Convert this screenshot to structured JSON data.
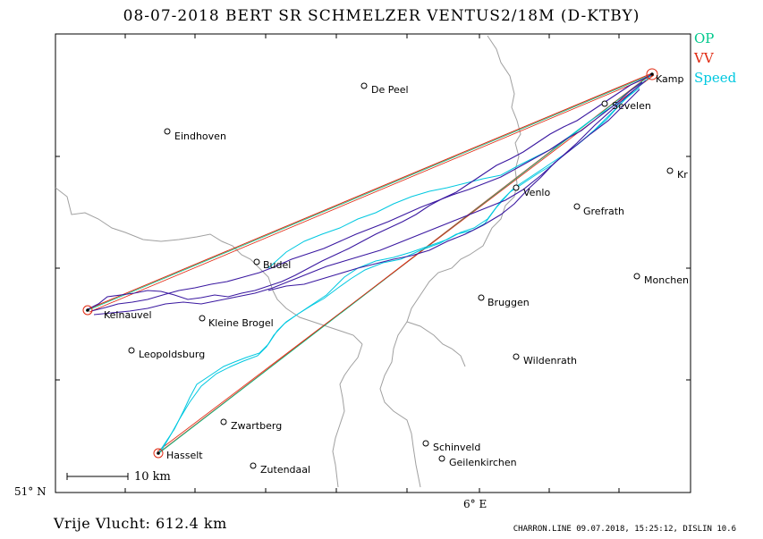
{
  "title": "08-07-2018   BERT SR SCHMELZER   VENTUS2/18M (D-KTBY)",
  "legend": [
    {
      "label": "OP",
      "color": "#00c88c"
    },
    {
      "label": "VV",
      "color": "#e02810"
    },
    {
      "label": "Speed",
      "color": "#00c8e0"
    }
  ],
  "places": {
    "de_peel": "De Peel",
    "eindhoven": "Eindhoven",
    "kamp": "Kamp",
    "sevelen": "Sevelen",
    "kr": "Kr",
    "venlo": "Venlo",
    "grefrath": "Grefrath",
    "budel": "Budel",
    "monchen": "Monchen",
    "kelnauvel": "Kelnauvel",
    "kleine_brogel": "Kleine Brogel",
    "bruggen": "Bruggen",
    "leopoldsburg": "Leopoldsburg",
    "wildenrath": "Wildenrath",
    "zwartberg": "Zwartberg",
    "hasselt": "Hasselt",
    "schinveld": "Schinveld",
    "zutendaal": "Zutendaal",
    "geilenkirchen": "Geilenkirchen"
  },
  "axes": {
    "lat_label": "51° N",
    "lon_label": "6° E"
  },
  "scale": {
    "label": "10 km"
  },
  "footer": {
    "distance": "Vrije Vlucht:  612.4 km",
    "credit": "CHARRON.LINE 09.07.2018, 15:25:12, DISLIN 10.6"
  },
  "colors": {
    "track": "#3a18a0",
    "speed": "#00c8e0",
    "op": "#00c88c",
    "vv": "#e02810",
    "border": "#a0a0a0"
  }
}
